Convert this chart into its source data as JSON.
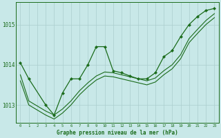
{
  "background_color": "#c8e8e8",
  "plot_bg_color": "#c8e8e8",
  "line_color": "#1a6b1a",
  "grid_color": "#aacece",
  "xlabel": "Graphe pression niveau de la mer (hPa)",
  "ylim": [
    1012.55,
    1015.55
  ],
  "xlim": [
    -0.5,
    23.5
  ],
  "yticks": [
    1013,
    1014,
    1015
  ],
  "xticks": [
    0,
    1,
    2,
    3,
    4,
    5,
    6,
    7,
    8,
    9,
    10,
    11,
    12,
    13,
    14,
    15,
    16,
    17,
    18,
    19,
    20,
    21,
    22,
    23
  ],
  "series_marked": {
    "x": [
      0,
      1,
      3,
      4,
      5,
      6,
      7,
      8,
      9,
      10,
      11,
      12,
      13,
      14,
      15,
      16,
      17,
      18,
      19,
      20,
      21,
      22,
      23
    ],
    "y": [
      1014.05,
      1013.65,
      1013.0,
      1012.75,
      1013.3,
      1013.65,
      1013.65,
      1014.0,
      1014.45,
      1014.45,
      1013.85,
      1013.8,
      1013.72,
      1013.65,
      1013.65,
      1013.8,
      1014.2,
      1014.35,
      1014.7,
      1015.0,
      1015.2,
      1015.35,
      1015.4
    ]
  },
  "series_smooth1": {
    "x": [
      0,
      1,
      3,
      4,
      5,
      6,
      7,
      8,
      9,
      10,
      11,
      12,
      13,
      14,
      15,
      16,
      17,
      18,
      19,
      20,
      21,
      22,
      23
    ],
    "y": [
      1013.75,
      1013.1,
      1012.85,
      1012.75,
      1012.9,
      1013.1,
      1013.35,
      1013.55,
      1013.72,
      1013.82,
      1013.8,
      1013.75,
      1013.7,
      1013.65,
      1013.6,
      1013.67,
      1013.85,
      1014.0,
      1014.25,
      1014.65,
      1014.88,
      1015.1,
      1015.27
    ]
  },
  "series_smooth2": {
    "x": [
      0,
      1,
      3,
      4,
      5,
      6,
      7,
      8,
      9,
      10,
      11,
      12,
      13,
      14,
      15,
      16,
      17,
      18,
      19,
      20,
      21,
      22,
      23
    ],
    "y": [
      1013.6,
      1013.0,
      1012.75,
      1012.65,
      1012.8,
      1013.0,
      1013.25,
      1013.45,
      1013.62,
      1013.72,
      1013.7,
      1013.65,
      1013.6,
      1013.55,
      1013.5,
      1013.57,
      1013.75,
      1013.9,
      1014.15,
      1014.55,
      1014.78,
      1015.0,
      1015.17
    ]
  }
}
